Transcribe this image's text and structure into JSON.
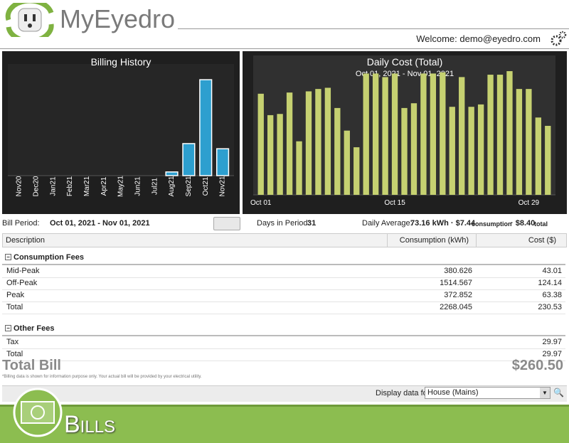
{
  "header": {
    "brand": "MyEyedro",
    "welcome": "Welcome: demo@eyedro.com"
  },
  "chart_data": [
    {
      "type": "bar",
      "title": "Billing History",
      "categories": [
        "Nov20",
        "Dec20",
        "Jan21",
        "Feb21",
        "Mar21",
        "Apr21",
        "May21",
        "Jun21",
        "Jul21",
        "Aug21",
        "Sep21",
        "Oct21",
        "Nov21"
      ],
      "values": [
        0,
        0,
        0,
        0,
        0,
        0,
        0,
        0,
        0,
        10,
        87,
        260.5,
        73
      ],
      "color": "#2d9fcf",
      "ylim": [
        0,
        280
      ]
    },
    {
      "type": "bar",
      "title": "Daily Cost (Total)",
      "subtitle": "Oct 01, 2021 - Nov 01, 2021",
      "categories": [
        "Oct 01",
        null,
        null,
        null,
        null,
        null,
        null,
        null,
        null,
        null,
        null,
        null,
        null,
        null,
        "Oct 15",
        null,
        null,
        null,
        null,
        null,
        null,
        null,
        null,
        null,
        null,
        null,
        null,
        null,
        "Oct 29",
        null,
        null
      ],
      "values": [
        8.5,
        6.7,
        6.8,
        8.6,
        4.5,
        8.7,
        8.9,
        9.0,
        7.3,
        5.4,
        4.0,
        10.2,
        10.2,
        9.9,
        10.2,
        7.3,
        7.7,
        10.2,
        10.2,
        10.3,
        7.4,
        9.9,
        7.4,
        7.6,
        10.1,
        10.1,
        10.4,
        8.9,
        8.9,
        6.5,
        5.8
      ],
      "color": "#c6d171",
      "ylim": [
        0,
        11
      ]
    }
  ],
  "summary": {
    "bill_period_label": "Bill Period:",
    "bill_period": "Oct 01, 2021 - Nov 01, 2021",
    "days_label": "Days in Period:",
    "days": "31",
    "avg_label": "Daily Average:",
    "avg_consumption": "73.16 kWh · $7.44",
    "avg_consumption_unit": "consumption",
    "avg_total": "· $8.40",
    "avg_total_unit": "total"
  },
  "table": {
    "columns": [
      "Description",
      "Consumption (kWh)",
      "Cost ($)"
    ],
    "sections": [
      {
        "title": "Consumption Fees",
        "rows": [
          [
            "Mid-Peak",
            "380.626",
            "43.01"
          ],
          [
            "Off-Peak",
            "1514.567",
            "124.14"
          ],
          [
            "Peak",
            "372.852",
            "63.38"
          ],
          [
            "Total",
            "2268.045",
            "230.53"
          ]
        ]
      },
      {
        "title": "Other Fees",
        "rows": [
          [
            "Tax",
            "",
            "29.97"
          ],
          [
            "Total",
            "",
            "29.97"
          ]
        ]
      }
    ]
  },
  "total_bill": {
    "label": "Total Bill",
    "amount": "$260.50"
  },
  "footnote": "*Billing data is shown for information purpose only. Your actual bill will be provided by your electrical utility.",
  "display": {
    "label": "Display data for:",
    "selected": "House (Mains)"
  },
  "banner": "Bills"
}
